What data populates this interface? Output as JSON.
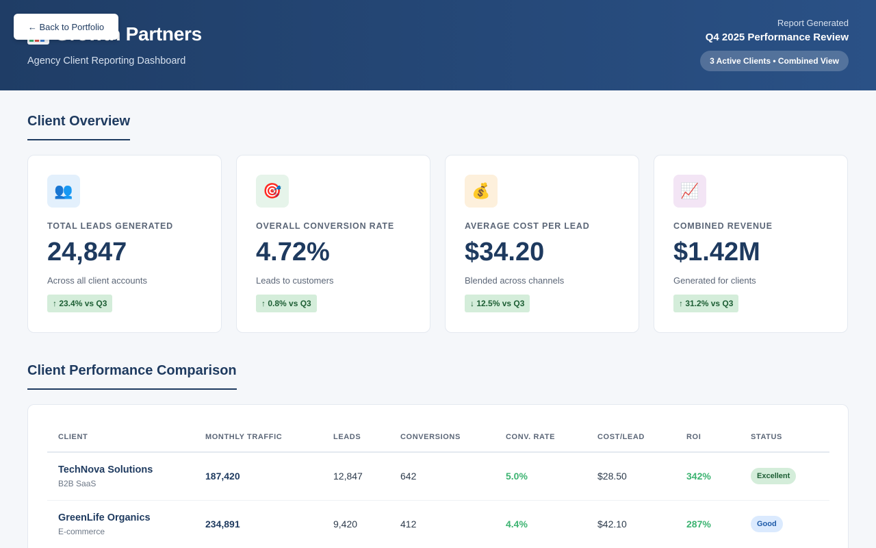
{
  "header": {
    "brand_title": "Growth Partners",
    "brand_subtitle": "Agency Client Reporting Dashboard",
    "back_button_label": "← Back to Portfolio",
    "report_label": "Report Generated",
    "report_title": "Q4 2025 Performance Review",
    "report_pill": "3 Active Clients • Combined View"
  },
  "overview": {
    "title": "Client Overview",
    "cards": [
      {
        "icon": "people-icon",
        "icon_glyph": "👥",
        "icon_bg": "#e3f0fc",
        "label": "TOTAL LEADS GENERATED",
        "value": "24,847",
        "desc": "Across all client accounts",
        "trend": "↑ 23.4% vs Q3"
      },
      {
        "icon": "target-icon",
        "icon_glyph": "🎯",
        "icon_bg": "#e6f4ea",
        "label": "OVERALL CONVERSION RATE",
        "value": "4.72%",
        "desc": "Leads to customers",
        "trend": "↑ 0.8% vs Q3"
      },
      {
        "icon": "money-bag-icon",
        "icon_glyph": "💰",
        "icon_bg": "#fdf0dc",
        "label": "AVERAGE COST PER LEAD",
        "value": "$34.20",
        "desc": "Blended across channels",
        "trend": "↓ 12.5% vs Q3"
      },
      {
        "icon": "trend-chart-icon",
        "icon_glyph": "📈",
        "icon_bg": "#f3e5f5",
        "label": "COMBINED REVENUE",
        "value": "$1.42M",
        "desc": "Generated for clients",
        "trend": "↑ 31.2% vs Q3"
      }
    ]
  },
  "comparison": {
    "title": "Client Performance Comparison",
    "columns": [
      "CLIENT",
      "MONTHLY TRAFFIC",
      "LEADS",
      "CONVERSIONS",
      "CONV. RATE",
      "COST/LEAD",
      "ROI",
      "STATUS"
    ],
    "rows": [
      {
        "client": "TechNova Solutions",
        "type": "B2B SaaS",
        "traffic": "187,420",
        "leads": "12,847",
        "conversions": "642",
        "conv_rate": "5.0%",
        "cost_per_lead": "$28.50",
        "roi": "342%",
        "status": "Excellent"
      },
      {
        "client": "GreenLife Organics",
        "type": "E-commerce",
        "traffic": "234,891",
        "leads": "9,420",
        "conversions": "412",
        "conv_rate": "4.4%",
        "cost_per_lead": "$42.10",
        "roi": "287%",
        "status": "Good"
      }
    ]
  },
  "colors": {
    "header_start": "#1f3d66",
    "header_end": "#2a5186",
    "navy_text": "#1e3a5f",
    "positive_green": "#3cb371",
    "trend_badge_bg": "#d4edda"
  }
}
